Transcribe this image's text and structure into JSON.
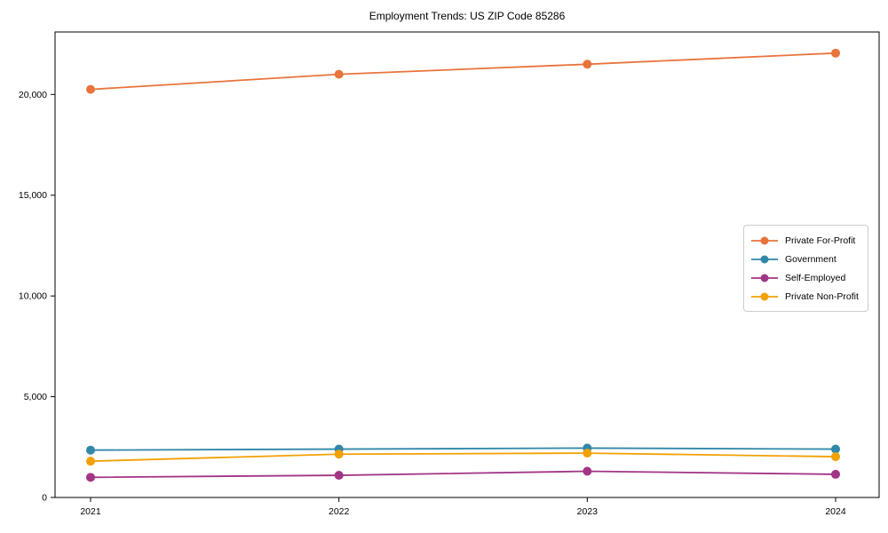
{
  "chart_data": {
    "type": "line",
    "title": "Employment Trends: US ZIP Code 85286",
    "x": [
      2021,
      2022,
      2023,
      2024
    ],
    "x_tick_labels": [
      "2021",
      "2022",
      "2023",
      "2024"
    ],
    "y_ticks": [
      0,
      5000,
      10000,
      15000,
      20000
    ],
    "y_tick_labels": [
      "0",
      "5,000",
      "10,000",
      "15,000",
      "20,000"
    ],
    "ylim": [
      0,
      23100
    ],
    "grid": false,
    "legend_position": "center-right",
    "series": [
      {
        "name": "Private For-Profit",
        "color": "#e8743b",
        "values": [
          20250,
          21000,
          21500,
          22050
        ]
      },
      {
        "name": "Government",
        "color": "#3187a8",
        "values": [
          2350,
          2400,
          2450,
          2400
        ]
      },
      {
        "name": "Self-Employed",
        "color": "#a23585",
        "values": [
          1000,
          1100,
          1300,
          1150
        ]
      },
      {
        "name": "Private Non-Profit",
        "color": "#f2a104",
        "values": [
          1800,
          2150,
          2200,
          2025
        ]
      }
    ]
  }
}
